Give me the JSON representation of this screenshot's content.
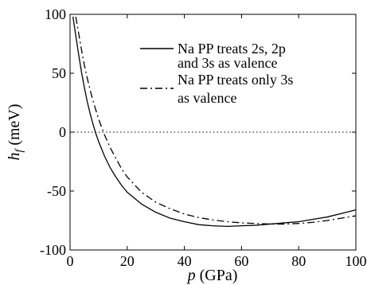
{
  "chart_data": {
    "type": "line",
    "title": "",
    "xlabel_symbol": "p",
    "xlabel_unit": " (GPa)",
    "ylabel_symbol": "h",
    "ylabel_subscript": "f",
    "ylabel_unit": " (meV)",
    "xlim": [
      0,
      100
    ],
    "ylim": [
      -100,
      100
    ],
    "xticks": [
      {
        "value": 0,
        "label": "0"
      },
      {
        "value": 20,
        "label": "20"
      },
      {
        "value": 40,
        "label": "40"
      },
      {
        "value": 60,
        "label": "60"
      },
      {
        "value": 80,
        "label": "80"
      },
      {
        "value": 100,
        "label": "100"
      }
    ],
    "yticks": [
      {
        "value": 100,
        "label": "100"
      },
      {
        "value": 50,
        "label": "50"
      },
      {
        "value": 0,
        "label": "0"
      },
      {
        "value": -50,
        "label": "-50"
      },
      {
        "value": -100,
        "label": "-100"
      }
    ],
    "reference_line": {
      "y": 0,
      "style": "dotted"
    },
    "legend": {
      "placement": "top-right",
      "entries": [
        {
          "lines": [
            "Na PP treats 2s, 2p",
            "and 3s as valence"
          ],
          "style": "solid"
        },
        {
          "lines": [
            "Na PP treats only 3s",
            "as valence"
          ],
          "style": "dashdot"
        }
      ]
    },
    "series": [
      {
        "style": "solid",
        "x": [
          1,
          2,
          3,
          4,
          5,
          6,
          7,
          8,
          9,
          10,
          12,
          14,
          16,
          18,
          20,
          25,
          30,
          35,
          40,
          45,
          50,
          55,
          60,
          65,
          70,
          75,
          80,
          85,
          90,
          95,
          100
        ],
        "y": [
          98,
          82,
          66,
          51,
          38,
          26,
          16,
          7,
          -1,
          -8,
          -20,
          -30,
          -38,
          -45,
          -51,
          -61,
          -68,
          -73,
          -76,
          -78.5,
          -79.5,
          -80,
          -79.5,
          -79,
          -78,
          -77,
          -76,
          -74,
          -72,
          -69,
          -66
        ]
      },
      {
        "style": "dashdot",
        "x": [
          2,
          3,
          4,
          5,
          6,
          7,
          8,
          9,
          10,
          12,
          14,
          16,
          18,
          20,
          25,
          30,
          35,
          40,
          45,
          50,
          55,
          60,
          65,
          70,
          75,
          80,
          85,
          90,
          95,
          100
        ],
        "y": [
          98,
          84,
          70,
          57,
          46,
          36,
          27,
          19,
          11,
          -2,
          -13,
          -22,
          -31,
          -38,
          -51,
          -59.5,
          -65,
          -69.5,
          -72.5,
          -74.5,
          -76,
          -77,
          -77.5,
          -78,
          -78,
          -77.5,
          -76.5,
          -75,
          -73,
          -71
        ]
      }
    ]
  }
}
